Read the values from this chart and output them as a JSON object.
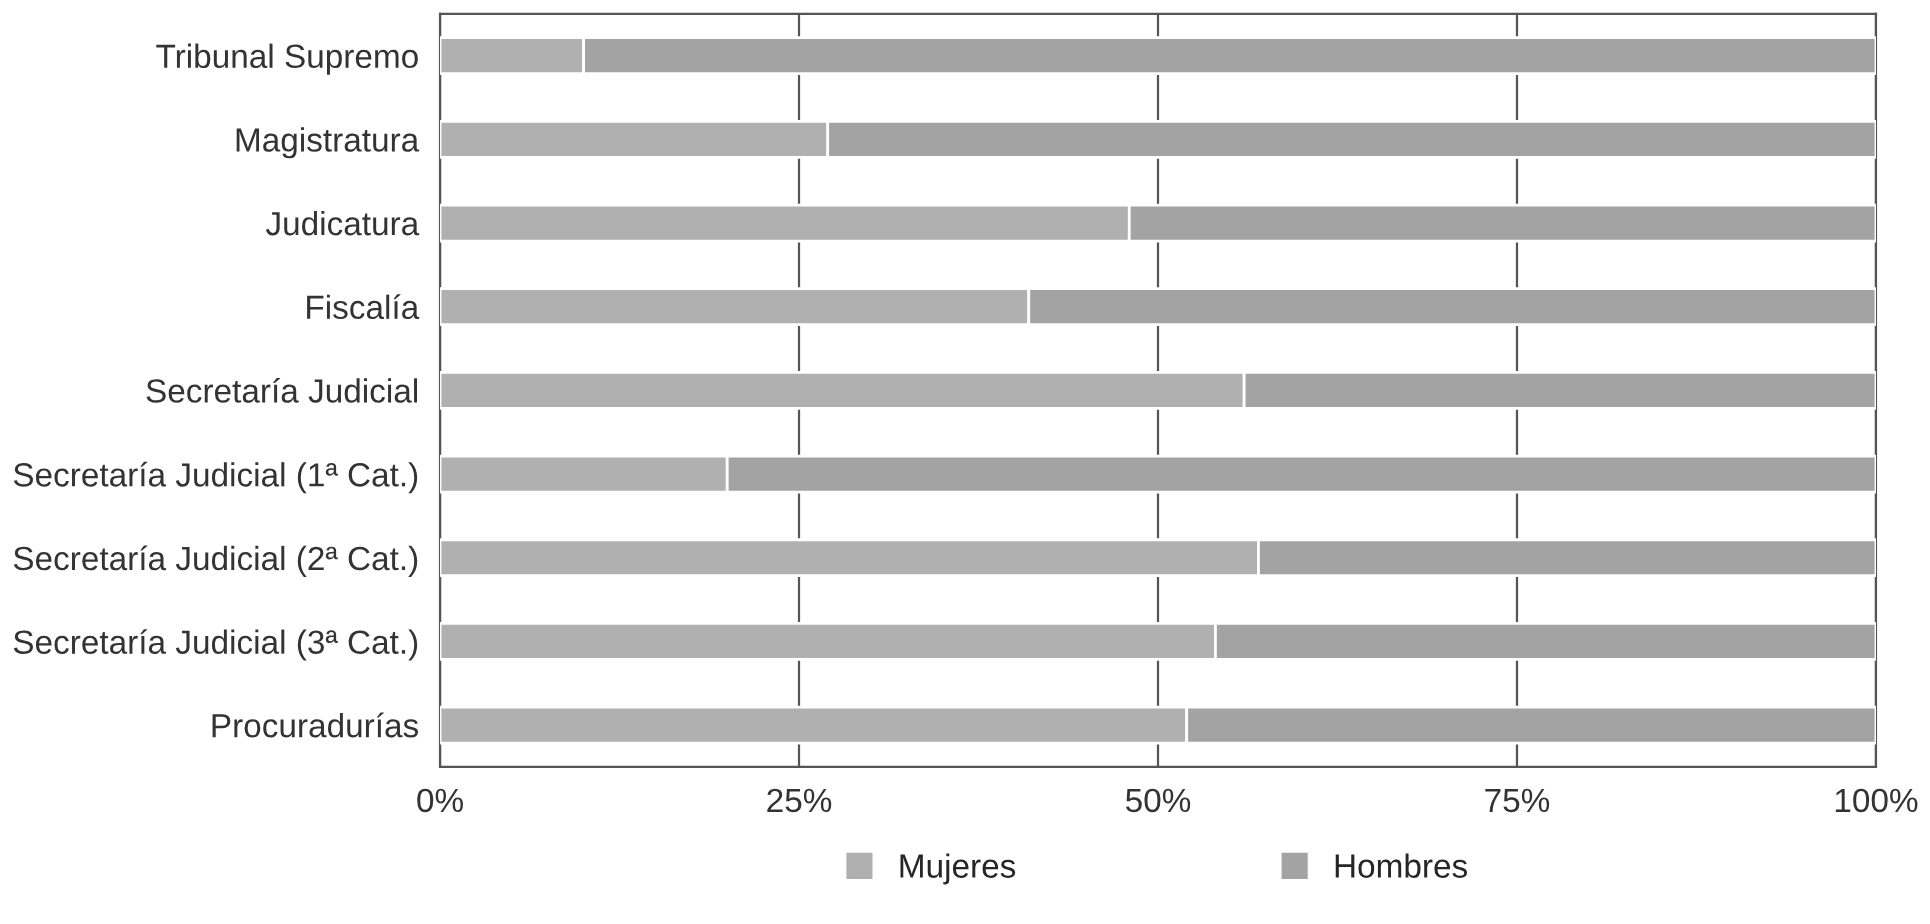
{
  "chart_data": {
    "type": "bar",
    "orientation": "horizontal",
    "stacked": true,
    "categories": [
      "Tribunal Supremo",
      "Magistratura",
      "Judicatura",
      "Fiscalía",
      "Secretaría Judicial",
      "Secretaría Judicial (1ª Cat.)",
      "Secretaría Judicial (2ª Cat.)",
      "Secretaría Judicial (3ª Cat.)",
      "Procuradurías"
    ],
    "series": [
      {
        "name": "Mujeres",
        "color": "#b0b0b0",
        "values": [
          10,
          27,
          48,
          41,
          56,
          20,
          57,
          54,
          52
        ]
      },
      {
        "name": "Hombres",
        "color": "#a3a3a3",
        "values": [
          90,
          73,
          52,
          59,
          44,
          80,
          43,
          46,
          48
        ]
      }
    ],
    "xlim": [
      0,
      100
    ],
    "xticks": [
      {
        "value": 0,
        "label": "0%"
      },
      {
        "value": 25,
        "label": "25%"
      },
      {
        "value": 50,
        "label": "50%"
      },
      {
        "value": 75,
        "label": "75%"
      },
      {
        "value": 100,
        "label": "100%"
      }
    ],
    "grid": "x",
    "legend": "bottom"
  }
}
